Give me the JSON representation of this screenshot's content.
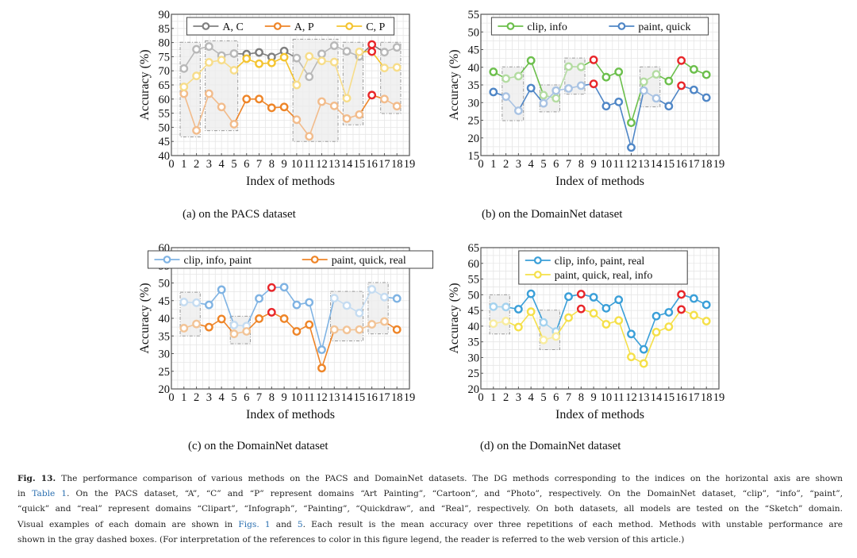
{
  "figure": {
    "label": "Fig. 13.",
    "caption_lines": [
      [
        {
          "t": "The performance comparison of various methods on the PACS and DomainNet datasets. The DG methods corresponding to the indices on the horizontal axis are shown"
        }
      ],
      [
        {
          "t": "in "
        },
        {
          "t": "Table 1",
          "link": true
        },
        {
          "t": ". On the PACS dataset, “A”, “C” and “P” represent domains “Art Painting”, “Cartoon”, and “Photo”, respectively. On the DomainNet dataset, “clip”, “info”, “paint”,"
        }
      ],
      [
        {
          "t": "“quick” and “real” represent domains “Clipart”, “Infograph”, “Painting”, “Quickdraw”, and “Real”, respectively. On both datasets, all models are tested on the “Sketch” domain."
        }
      ],
      [
        {
          "t": "Visual examples of each domain are shown in "
        },
        {
          "t": "Figs. 1",
          "link": true
        },
        {
          "t": " and "
        },
        {
          "t": "5",
          "link": true
        },
        {
          "t": ". Each result is the mean accuracy over three repetitions of each method. Methods with unstable performance are"
        }
      ],
      [
        {
          "t": "shown in the gray dashed boxes. (For interpretation of the references to color in this figure legend, the reader is referred to the web version of this article.)"
        }
      ]
    ]
  },
  "colors": {
    "highlight": "#e8262a",
    "box_fill": "#ececec",
    "box_stroke": "#9a9a9a",
    "grid": "#e6e6e6"
  },
  "chart_data": [
    {
      "type": "line",
      "subcaption": "(a)  on the PACS dataset",
      "xlabel": "Index of methods",
      "ylabel": "Accuracy (%)",
      "xlim": [
        0,
        19
      ],
      "ylim": [
        40,
        90
      ],
      "xticks": [
        0,
        1,
        2,
        3,
        4,
        5,
        6,
        7,
        8,
        9,
        10,
        11,
        12,
        13,
        14,
        15,
        16,
        17,
        18,
        19
      ],
      "yticks": [
        40,
        45,
        50,
        55,
        60,
        65,
        70,
        75,
        80,
        85,
        90
      ],
      "grid": true,
      "legend": {
        "placement": "top",
        "columns": 3
      },
      "x": [
        1,
        2,
        3,
        4,
        5,
        6,
        7,
        8,
        9,
        10,
        11,
        12,
        13,
        14,
        15,
        16,
        17,
        18
      ],
      "series": [
        {
          "name": "A, C",
          "color": "#7f7f7f",
          "light": "#b8b8b8",
          "values": [
            70.8,
            77.6,
            78.6,
            75.4,
            76.1,
            75.9,
            76.5,
            74.9,
            77.0,
            74.5,
            67.9,
            76.0,
            78.9,
            76.9,
            75.1,
            79.3,
            76.6,
            78.3
          ],
          "highlight": [
            16
          ]
        },
        {
          "name": "A, P",
          "color": "#ee8528",
          "light": "#f2bc8c",
          "values": [
            61.9,
            48.9,
            61.9,
            57.2,
            51.1,
            60.0,
            60.0,
            56.9,
            57.2,
            52.7,
            46.8,
            59.1,
            57.6,
            53.1,
            54.5,
            61.4,
            60.0,
            57.5
          ],
          "highlight": [
            16
          ]
        },
        {
          "name": "C, P",
          "color": "#f4c430",
          "light": "#f7dd8a",
          "values": [
            64.3,
            68.2,
            73.0,
            73.8,
            70.2,
            74.3,
            72.5,
            72.8,
            74.8,
            65.0,
            75.1,
            73.5,
            73.1,
            60.3,
            76.7,
            76.8,
            71.0,
            71.2
          ],
          "highlight": [
            16
          ]
        }
      ],
      "unstable_boxes": [
        {
          "x": [
            0.7,
            2.3
          ],
          "y": [
            46.6,
            80.1
          ]
        },
        {
          "x": [
            2.7,
            5.3
          ],
          "y": [
            48.8,
            80.6
          ]
        },
        {
          "x": [
            9.7,
            13.3
          ],
          "y": [
            45.0,
            81.2
          ]
        },
        {
          "x": [
            13.7,
            15.3
          ],
          "y": [
            50.9,
            80.1
          ]
        },
        {
          "x": [
            16.7,
            18.3
          ],
          "y": [
            54.9,
            80.1
          ]
        }
      ]
    },
    {
      "type": "line",
      "subcaption": "(b)  on the DomainNet dataset",
      "xlabel": "Index of methods",
      "ylabel": "Accuracy (%)",
      "xlim": [
        0,
        19
      ],
      "ylim": [
        15,
        55
      ],
      "xticks": [
        0,
        1,
        2,
        3,
        4,
        5,
        6,
        7,
        8,
        9,
        10,
        11,
        12,
        13,
        14,
        15,
        16,
        17,
        18,
        19
      ],
      "yticks": [
        15,
        20,
        25,
        30,
        35,
        40,
        45,
        50,
        55
      ],
      "grid": true,
      "legend": {
        "placement": "top",
        "columns": 2
      },
      "x": [
        1,
        2,
        3,
        4,
        5,
        6,
        7,
        8,
        9,
        10,
        11,
        12,
        13,
        14,
        15,
        16,
        17,
        18
      ],
      "series": [
        {
          "name": "clip, info",
          "color": "#6cbf4c",
          "light": "#b4dca2",
          "values": [
            38.7,
            36.8,
            37.5,
            41.9,
            32.1,
            31.2,
            40.2,
            40.1,
            42.1,
            37.2,
            38.7,
            24.3,
            35.9,
            38.0,
            36.1,
            41.9,
            39.4,
            37.9
          ],
          "highlight": [
            9,
            16
          ]
        },
        {
          "name": "paint, quick",
          "color": "#4f86c6",
          "light": "#a9c3e3",
          "values": [
            33.0,
            31.7,
            27.7,
            34.1,
            29.8,
            33.4,
            34.0,
            34.8,
            35.3,
            29.0,
            30.2,
            17.3,
            33.4,
            31.2,
            29.0,
            34.8,
            33.6,
            31.4
          ],
          "highlight": [
            9,
            16
          ]
        }
      ],
      "unstable_boxes": [
        {
          "x": [
            1.7,
            3.4
          ],
          "y": [
            24.9,
            40.1
          ]
        },
        {
          "x": [
            4.7,
            6.3
          ],
          "y": [
            27.4,
            35.0
          ]
        },
        {
          "x": [
            6.7,
            8.3
          ],
          "y": [
            32.4,
            42.6
          ]
        },
        {
          "x": [
            12.7,
            14.3
          ],
          "y": [
            28.8,
            40.1
          ]
        }
      ]
    },
    {
      "type": "line",
      "subcaption": "(c)  on the DomainNet dataset",
      "xlabel": "Index of methods",
      "ylabel": "Accuracy (%)",
      "xlim": [
        0,
        19
      ],
      "ylim": [
        20,
        60
      ],
      "xticks": [
        0,
        1,
        2,
        3,
        4,
        5,
        6,
        7,
        8,
        9,
        10,
        11,
        12,
        13,
        14,
        15,
        16,
        17,
        18,
        19
      ],
      "yticks": [
        20,
        25,
        30,
        35,
        40,
        45,
        50,
        55,
        60
      ],
      "grid": true,
      "legend": {
        "placement": "top",
        "columns": 2
      },
      "x": [
        1,
        2,
        3,
        4,
        5,
        6,
        7,
        8,
        9,
        10,
        11,
        12,
        13,
        14,
        15,
        16,
        17,
        18
      ],
      "series": [
        {
          "name": "clip, info, paint",
          "color": "#7fb3e3",
          "light": "#c5dcf1",
          "values": [
            44.6,
            44.4,
            43.8,
            48.1,
            38.1,
            37.8,
            45.6,
            48.7,
            48.8,
            43.8,
            44.5,
            31.1,
            45.7,
            43.6,
            41.5,
            48.2,
            46.0,
            45.6
          ],
          "highlight": [
            8
          ]
        },
        {
          "name": "paint, quick, real",
          "color": "#ee8528",
          "light": "#f2c497",
          "values": [
            37.2,
            38.4,
            37.5,
            39.8,
            35.6,
            36.3,
            39.9,
            41.7,
            39.9,
            36.3,
            38.2,
            25.9,
            36.8,
            36.7,
            36.8,
            38.3,
            39.1,
            36.8
          ],
          "highlight": [
            8
          ]
        }
      ],
      "unstable_boxes": [
        {
          "x": [
            0.7,
            2.3
          ],
          "y": [
            35.0,
            47.4
          ]
        },
        {
          "x": [
            4.7,
            6.3
          ],
          "y": [
            32.8,
            40.6
          ]
        },
        {
          "x": [
            12.7,
            15.3
          ],
          "y": [
            33.6,
            47.6
          ]
        },
        {
          "x": [
            15.7,
            17.3
          ],
          "y": [
            35.6,
            50.1
          ]
        }
      ]
    },
    {
      "type": "line",
      "subcaption": "(d)  on the DomainNet dataset",
      "xlabel": "Index of methods",
      "ylabel": "Accuracy (%)",
      "xlim": [
        0,
        19
      ],
      "ylim": [
        20,
        65
      ],
      "xticks": [
        0,
        1,
        2,
        3,
        4,
        5,
        6,
        7,
        8,
        9,
        10,
        11,
        12,
        13,
        14,
        15,
        16,
        17,
        18,
        19
      ],
      "yticks": [
        20,
        25,
        30,
        35,
        40,
        45,
        50,
        55,
        60,
        65
      ],
      "grid": true,
      "legend": {
        "placement": "top",
        "columns": 1
      },
      "x": [
        1,
        2,
        3,
        4,
        5,
        6,
        7,
        8,
        9,
        10,
        11,
        12,
        13,
        14,
        15,
        16,
        17,
        18
      ],
      "series": [
        {
          "name": "clip, info, paint, real",
          "color": "#3a9fd8",
          "light": "#a5d3ef",
          "values": [
            46.2,
            46.1,
            45.4,
            50.3,
            41.2,
            38.3,
            49.4,
            50.2,
            49.2,
            45.7,
            48.4,
            37.5,
            32.6,
            43.2,
            44.4,
            50.1,
            48.8,
            46.8
          ],
          "highlight": [
            8,
            16
          ]
        },
        {
          "name": "paint, quick, real, info",
          "color": "#f5e04a",
          "light": "#f8eca0",
          "values": [
            40.8,
            41.6,
            39.7,
            44.6,
            35.6,
            36.7,
            42.7,
            45.5,
            44.1,
            40.6,
            41.8,
            30.2,
            28.1,
            38.1,
            39.8,
            45.3,
            43.5,
            41.6
          ],
          "highlight": [
            8,
            16
          ]
        }
      ],
      "unstable_boxes": [
        {
          "x": [
            0.7,
            2.3
          ],
          "y": [
            37.5,
            50.0
          ]
        },
        {
          "x": [
            4.7,
            6.3
          ],
          "y": [
            32.5,
            45.1
          ]
        }
      ]
    }
  ]
}
